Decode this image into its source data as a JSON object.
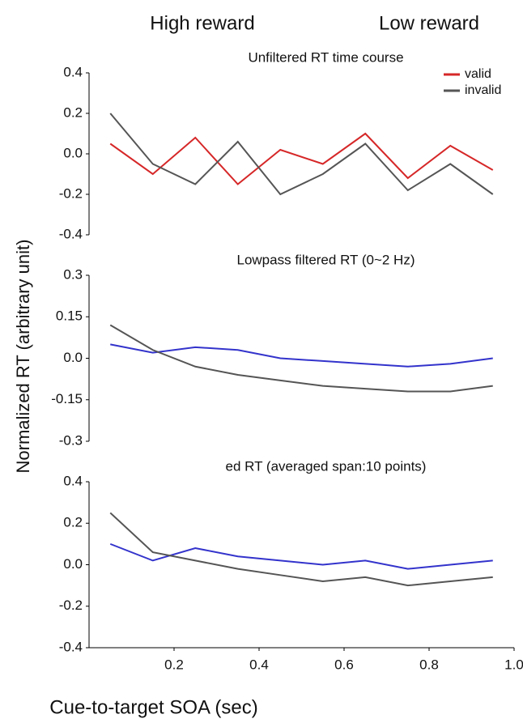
{
  "column_titles": [
    "High reward",
    "Low reward"
  ],
  "y_label": "Normalized RT (arbitrary unit)",
  "x_label": "Cue-to-target SOA (sec)",
  "chart_data": [
    {
      "type": "line",
      "title": "Unfiltered RT time course",
      "legend": "upper right",
      "x": [
        0.05,
        0.15,
        0.25,
        0.35,
        0.45,
        0.55,
        0.65,
        0.75,
        0.85,
        0.95
      ],
      "xlim": [
        0,
        1
      ],
      "ylim": [
        -0.4,
        0.4
      ],
      "yticks": [
        0.4,
        0.2,
        {
          "value": 0,
          "label": "0.0"
        },
        -0.2,
        -0.4
      ],
      "series": [
        {
          "name": "valid",
          "color": "#d62728",
          "values": [
            0.05,
            -0.1,
            0.08,
            -0.15,
            0.02,
            -0.05,
            0.1,
            -0.12,
            0.04,
            -0.08
          ]
        },
        {
          "name": "invalid",
          "color": "#555555",
          "values": [
            0.2,
            -0.05,
            -0.15,
            0.06,
            -0.2,
            -0.1,
            0.05,
            -0.18,
            -0.05,
            -0.2
          ]
        }
      ]
    },
    {
      "type": "line",
      "title": "Lowpass filtered RT (0~2 Hz)",
      "x": [
        0.05,
        0.15,
        0.25,
        0.35,
        0.45,
        0.55,
        0.65,
        0.75,
        0.85,
        0.95
      ],
      "xlim": [
        0,
        1
      ],
      "ylim": [
        -0.3,
        0.3
      ],
      "yticks": [
        0.3,
        0.15,
        {
          "value": 0,
          "label": "0.0"
        },
        -0.15,
        -0.3
      ],
      "series": [
        {
          "name": "valid",
          "color": "#3333cc",
          "values": [
            0.05,
            0.02,
            0.04,
            0.03,
            0.0,
            -0.01,
            -0.02,
            -0.03,
            -0.02,
            0.0
          ]
        },
        {
          "name": "invalid",
          "color": "#555555",
          "values": [
            0.12,
            0.03,
            -0.03,
            -0.06,
            -0.08,
            -0.1,
            -0.11,
            -0.12,
            -0.12,
            -0.1
          ]
        }
      ]
    },
    {
      "type": "line",
      "title": "ed RT (averaged span:10 points)",
      "x": [
        0.05,
        0.15,
        0.25,
        0.35,
        0.45,
        0.55,
        0.65,
        0.75,
        0.85,
        0.95
      ],
      "xlim": [
        0,
        1
      ],
      "ylim": [
        -0.4,
        0.4
      ],
      "yticks": [
        0.4,
        0.2,
        {
          "value": 0,
          "label": "0.0"
        },
        -0.2,
        -0.4
      ],
      "xticks": [
        0.2,
        0.4,
        0.6,
        0.8,
        {
          "value": 1,
          "label": "1.0"
        }
      ],
      "series": [
        {
          "name": "valid",
          "color": "#3333cc",
          "values": [
            0.1,
            0.02,
            0.08,
            0.04,
            0.02,
            0.0,
            0.02,
            -0.02,
            0.0,
            0.02
          ]
        },
        {
          "name": "invalid",
          "color": "#555555",
          "values": [
            0.25,
            0.06,
            0.02,
            -0.02,
            -0.05,
            -0.08,
            -0.06,
            -0.1,
            -0.08,
            -0.06
          ]
        }
      ]
    }
  ]
}
